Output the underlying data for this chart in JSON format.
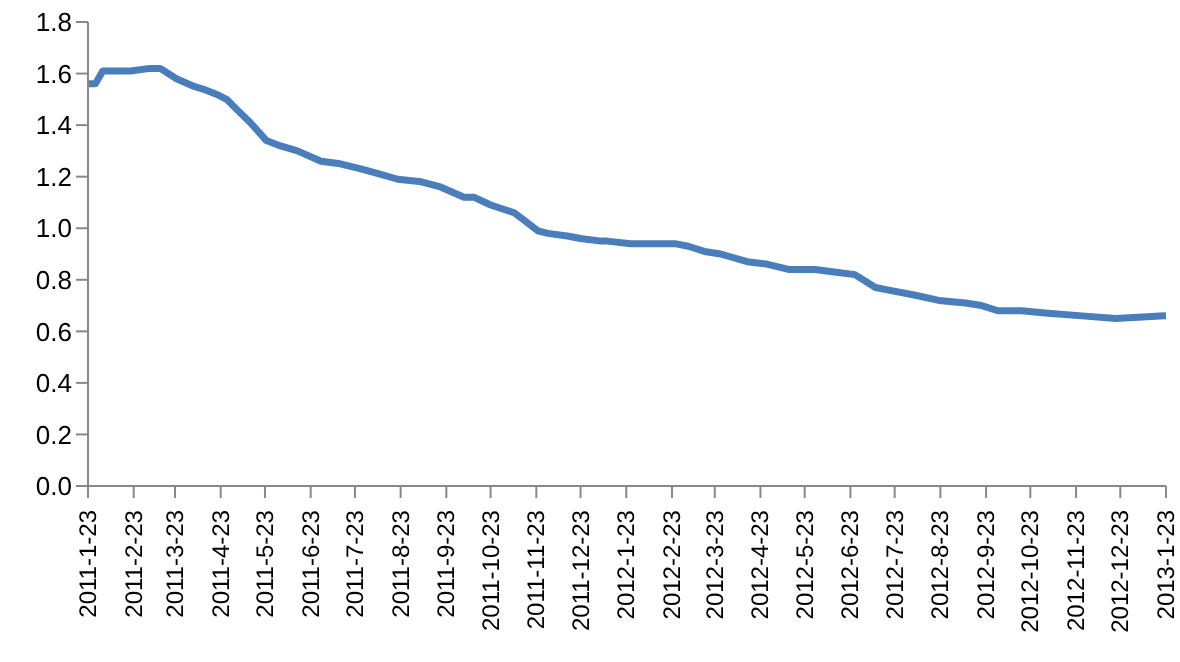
{
  "chart_data": {
    "type": "line",
    "x": [
      "2011-01-24",
      "2011-01-28",
      "2011-02-02",
      "2011-02-21",
      "2011-03-06",
      "2011-03-13",
      "2011-03-24",
      "2011-04-05",
      "2011-04-11",
      "2011-04-20",
      "2011-04-27",
      "2011-05-04",
      "2011-05-13",
      "2011-05-24",
      "2011-06-02",
      "2011-06-14",
      "2011-06-30",
      "2011-07-13",
      "2011-07-27",
      "2011-08-09",
      "2011-08-21",
      "2011-09-06",
      "2011-09-19",
      "2011-10-05",
      "2011-10-12",
      "2011-10-23",
      "2011-11-08",
      "2011-11-15",
      "2011-11-24",
      "2011-12-01",
      "2011-12-14",
      "2011-12-23",
      "2012-01-06",
      "2012-01-10",
      "2012-01-26",
      "2012-02-25",
      "2012-03-05",
      "2012-03-16",
      "2012-03-27",
      "2012-04-14",
      "2012-04-28",
      "2012-05-12",
      "2012-05-30",
      "2012-06-12",
      "2012-06-26",
      "2012-07-10",
      "2012-07-19",
      "2012-08-06",
      "2012-08-22",
      "2012-09-09",
      "2012-09-20",
      "2012-10-01",
      "2012-10-17",
      "2012-11-04",
      "2012-11-27",
      "2012-12-20",
      "2013-01-22"
    ],
    "series": [
      {
        "color": "#4a7ebb",
        "values": [
          1.56,
          1.56,
          1.61,
          1.61,
          1.62,
          1.62,
          1.58,
          1.55,
          1.54,
          1.52,
          1.5,
          1.46,
          1.41,
          1.34,
          1.32,
          1.3,
          1.26,
          1.25,
          1.23,
          1.21,
          1.19,
          1.18,
          1.16,
          1.12,
          1.12,
          1.09,
          1.06,
          1.03,
          0.99,
          0.98,
          0.97,
          0.96,
          0.95,
          0.95,
          0.94,
          0.94,
          0.93,
          0.91,
          0.9,
          0.87,
          0.86,
          0.84,
          0.84,
          0.83,
          0.82,
          0.77,
          0.76,
          0.74,
          0.72,
          0.71,
          0.7,
          0.68,
          0.68,
          0.67,
          0.66,
          0.65,
          0.66
        ]
      }
    ],
    "xlim": [
      "2011-01-23",
      "2013-01-23"
    ],
    "xticks": [
      {
        "value": "2011-01-23",
        "label": "2011-1-23"
      },
      {
        "value": "2011-02-23",
        "label": "2011-2-23"
      },
      {
        "value": "2011-03-23",
        "label": "2011-3-23"
      },
      {
        "value": "2011-04-23",
        "label": "2011-4-23"
      },
      {
        "value": "2011-05-23",
        "label": "2011-5-23"
      },
      {
        "value": "2011-06-23",
        "label": "2011-6-23"
      },
      {
        "value": "2011-07-23",
        "label": "2011-7-23"
      },
      {
        "value": "2011-08-23",
        "label": "2011-8-23"
      },
      {
        "value": "2011-09-23",
        "label": "2011-9-23"
      },
      {
        "value": "2011-10-23",
        "label": "2011-10-23"
      },
      {
        "value": "2011-11-23",
        "label": "2011-11-23"
      },
      {
        "value": "2011-12-23",
        "label": "2011-12-23"
      },
      {
        "value": "2012-01-23",
        "label": "2012-1-23"
      },
      {
        "value": "2012-02-23",
        "label": "2012-2-23"
      },
      {
        "value": "2012-03-23",
        "label": "2012-3-23"
      },
      {
        "value": "2012-04-23",
        "label": "2012-4-23"
      },
      {
        "value": "2012-05-23",
        "label": "2012-5-23"
      },
      {
        "value": "2012-06-23",
        "label": "2012-6-23"
      },
      {
        "value": "2012-07-23",
        "label": "2012-7-23"
      },
      {
        "value": "2012-08-23",
        "label": "2012-8-23"
      },
      {
        "value": "2012-09-23",
        "label": "2012-9-23"
      },
      {
        "value": "2012-10-23",
        "label": "2012-10-23"
      },
      {
        "value": "2012-11-23",
        "label": "2012-11-23"
      },
      {
        "value": "2012-12-23",
        "label": "2012-12-23"
      },
      {
        "value": "2013-01-23",
        "label": "2013-1-23"
      }
    ],
    "ylim": [
      0,
      1.8
    ],
    "yticks": [
      {
        "value": 0,
        "label": "0.0"
      },
      {
        "value": 0.2,
        "label": "0.2"
      },
      {
        "value": 0.4,
        "label": "0.4"
      },
      {
        "value": 0.6,
        "label": "0.6"
      },
      {
        "value": 0.8,
        "label": "0.8"
      },
      {
        "value": 1.0,
        "label": "1.0"
      },
      {
        "value": 1.2,
        "label": "1.2"
      },
      {
        "value": 1.4,
        "label": "1.4"
      },
      {
        "value": 1.6,
        "label": "1.6"
      },
      {
        "value": 1.8,
        "label": "1.8"
      }
    ],
    "grid": false,
    "marker": "none",
    "line_style": "solid"
  }
}
